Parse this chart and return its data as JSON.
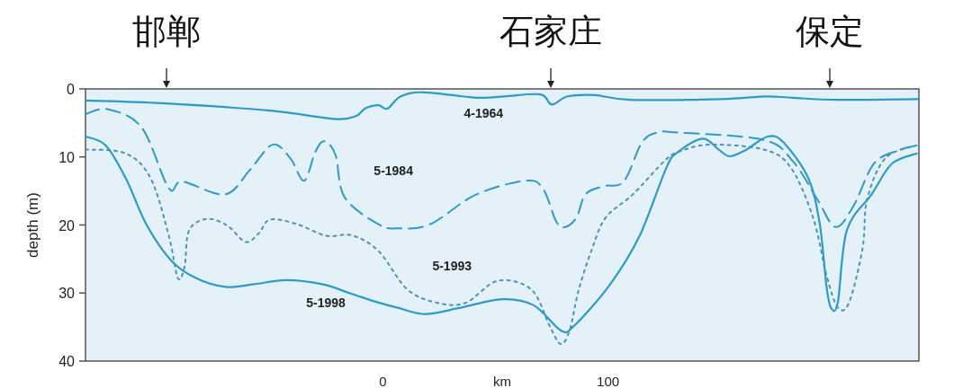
{
  "chart_data": {
    "type": "line",
    "xlabel": "km",
    "ylabel": "depth (m)",
    "xlim": [
      -132,
      238
    ],
    "xticks": [
      0,
      100
    ],
    "ylim": [
      40,
      0
    ],
    "yticks": [
      0,
      10,
      20,
      30,
      40
    ],
    "grid": false,
    "marker": "none",
    "annotations": [
      "邯郸",
      "石家庄",
      "保定"
    ],
    "series": [
      {
        "name": "4-1964",
        "color": "#2e9bc6",
        "line_style": "solid",
        "x": [
          -132,
          -98,
          -50,
          -22,
          -12,
          -8,
          -2,
          2,
          8,
          18,
          42,
          54,
          70,
          75,
          82,
          94,
          110,
          150,
          170,
          182,
          202,
          238
        ],
        "values": [
          1.7,
          2.1,
          3.2,
          4.4,
          4.0,
          2.9,
          2.4,
          2.9,
          1.1,
          0.5,
          1.3,
          1.1,
          0.8,
          2.3,
          1.1,
          0.9,
          1.6,
          1.5,
          1.1,
          1.3,
          1.6,
          1.5
        ]
      },
      {
        "name": "5-1984",
        "color": "#2e9bc6",
        "line_style": "dashed",
        "x": [
          -132,
          -122,
          -107,
          -95,
          -89,
          -70,
          -59,
          -49,
          -41,
          -35,
          -30,
          -26,
          -21,
          -17,
          -2,
          7,
          21,
          41,
          63,
          71,
          77,
          81,
          86,
          90,
          98,
          107,
          115,
          122,
          131,
          169,
          182,
          193,
          201,
          209,
          218,
          229,
          237
        ],
        "values": [
          3.7,
          3.0,
          5.7,
          14.6,
          13.6,
          15.5,
          11.9,
          8.2,
          10.2,
          13.5,
          9.3,
          7.7,
          9.7,
          15.9,
          19.9,
          20.5,
          19.9,
          15.6,
          13.5,
          14.6,
          19.5,
          20.3,
          18.9,
          15.5,
          14.3,
          13.6,
          7.9,
          6.4,
          6.4,
          7.5,
          10.6,
          16.3,
          20.3,
          17.2,
          11.0,
          9.0,
          8.3
        ]
      },
      {
        "name": "5-1993",
        "color": "#4f93b3",
        "line_style": "dotted",
        "x": [
          -132,
          -114,
          -103,
          -95,
          -91,
          -88,
          -86,
          -78,
          -69,
          -61,
          -55,
          -50,
          -38,
          -25,
          -14,
          -2,
          11,
          25,
          37,
          51,
          66,
          74,
          79,
          83,
          87,
          93,
          99,
          111,
          125,
          131,
          145,
          169,
          181,
          191,
          197,
          202,
          207,
          213,
          215,
          223,
          237
        ],
        "values": [
          8.9,
          9.5,
          13.2,
          21.6,
          27.8,
          26.1,
          20.8,
          19.1,
          20.1,
          22.5,
          21.2,
          19.2,
          19.9,
          21.6,
          21.5,
          23.8,
          29.5,
          31.5,
          31.4,
          28.2,
          29.5,
          34.8,
          37.5,
          35.4,
          29.5,
          23.4,
          18.9,
          15.5,
          10.6,
          9.3,
          8.2,
          8.9,
          11.5,
          18.9,
          27.4,
          32.1,
          31.4,
          23.4,
          16.3,
          10.2,
          8.3
        ]
      },
      {
        "name": "5-1998",
        "color": "#2e9bc6",
        "line_style": "solid",
        "x": [
          -132,
          -123,
          -114,
          -105,
          -94,
          -83,
          -70,
          -57,
          -43,
          -27,
          -14,
          -2,
          7,
          19,
          34,
          53,
          67,
          79,
          85,
          101,
          114,
          126,
          131,
          142,
          149,
          154,
          161,
          171,
          178,
          189,
          194,
          197,
          199,
          202,
          206,
          217,
          226,
          237
        ],
        "values": [
          7.0,
          8.3,
          13.2,
          19.9,
          25.2,
          27.8,
          29.1,
          28.7,
          28.1,
          28.7,
          30.1,
          31.4,
          32.2,
          33.1,
          32.2,
          30.9,
          31.8,
          35.5,
          34.8,
          28.7,
          21.6,
          11.5,
          9.3,
          7.3,
          8.9,
          9.9,
          9.0,
          7.0,
          7.9,
          13.2,
          19.9,
          29.1,
          32.2,
          31.4,
          20.8,
          15.5,
          11.0,
          9.5
        ]
      }
    ]
  }
}
